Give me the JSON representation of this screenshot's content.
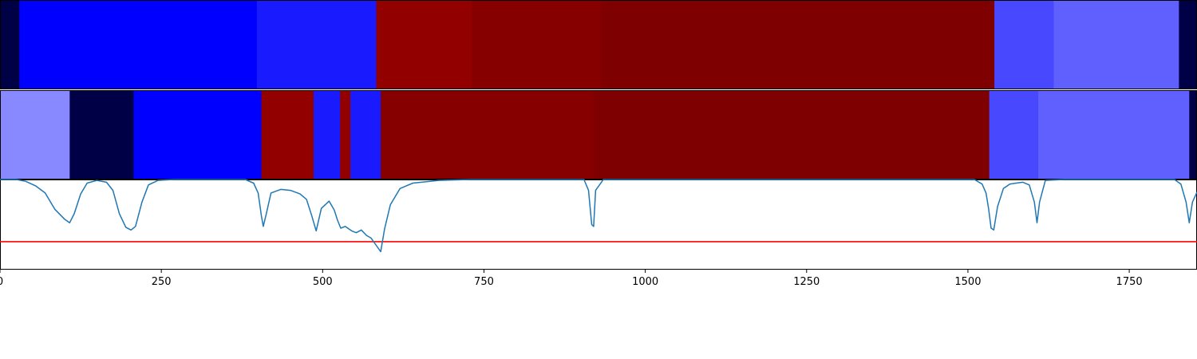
{
  "chart_data": [
    {
      "type": "heatmap",
      "colors": {
        "blue_dark": "#000046",
        "blue": "#0000ff",
        "blue_mid": "#1a1aff",
        "blue_light": "#4848ff",
        "blue_lighter": "#6060ff",
        "blue_pale": "#8888ff",
        "red": "#920000",
        "red_mid": "#870000",
        "red_dark": "#7e0000"
      },
      "segments": [
        {
          "x0": 0,
          "x1": 30,
          "color": "#000046"
        },
        {
          "x0": 30,
          "x1": 398,
          "color": "#0000ff"
        },
        {
          "x0": 398,
          "x1": 583,
          "color": "#1a1aff"
        },
        {
          "x0": 583,
          "x1": 731,
          "color": "#920000"
        },
        {
          "x0": 731,
          "x1": 931,
          "color": "#870000"
        },
        {
          "x0": 931,
          "x1": 1541,
          "color": "#7e0000"
        },
        {
          "x0": 1541,
          "x1": 1633,
          "color": "#4848ff"
        },
        {
          "x0": 1633,
          "x1": 1827,
          "color": "#6060ff"
        },
        {
          "x0": 1827,
          "x1": 1855,
          "color": "#000046"
        }
      ]
    },
    {
      "type": "heatmap",
      "segments": [
        {
          "x0": 0,
          "x1": 108,
          "color": "#8888ff"
        },
        {
          "x0": 108,
          "x1": 207,
          "color": "#000046"
        },
        {
          "x0": 207,
          "x1": 405,
          "color": "#0000ff"
        },
        {
          "x0": 405,
          "x1": 486,
          "color": "#920000"
        },
        {
          "x0": 486,
          "x1": 527,
          "color": "#1a1aff"
        },
        {
          "x0": 527,
          "x1": 543,
          "color": "#920000"
        },
        {
          "x0": 543,
          "x1": 590,
          "color": "#1a1aff"
        },
        {
          "x0": 590,
          "x1": 921,
          "color": "#870000"
        },
        {
          "x0": 921,
          "x1": 1533,
          "color": "#7e0000"
        },
        {
          "x0": 1533,
          "x1": 1609,
          "color": "#4848ff"
        },
        {
          "x0": 1609,
          "x1": 1843,
          "color": "#6060ff"
        },
        {
          "x0": 1843,
          "x1": 1855,
          "color": "#000046"
        }
      ]
    },
    {
      "type": "line",
      "xlim": [
        0,
        1855
      ],
      "ylim": [
        0,
        1
      ],
      "x_ticks": [
        0,
        250,
        500,
        750,
        1000,
        1250,
        1500,
        1750
      ],
      "x_tick_labels": [
        "0",
        "250",
        "500",
        "750",
        "1000",
        "1250",
        "1500",
        "1750"
      ],
      "threshold": {
        "value": 0.31,
        "color": "#ff0000"
      },
      "series_color": "#1f77b4",
      "points": [
        [
          0,
          1.0
        ],
        [
          25,
          1.0
        ],
        [
          40,
          0.98
        ],
        [
          55,
          0.93
        ],
        [
          70,
          0.85
        ],
        [
          85,
          0.67
        ],
        [
          100,
          0.56
        ],
        [
          108,
          0.52
        ],
        [
          115,
          0.62
        ],
        [
          125,
          0.84
        ],
        [
          135,
          0.96
        ],
        [
          150,
          0.99
        ],
        [
          165,
          0.97
        ],
        [
          175,
          0.88
        ],
        [
          185,
          0.62
        ],
        [
          195,
          0.47
        ],
        [
          203,
          0.44
        ],
        [
          210,
          0.48
        ],
        [
          220,
          0.75
        ],
        [
          230,
          0.94
        ],
        [
          245,
          0.99
        ],
        [
          270,
          1.0
        ],
        [
          380,
          1.0
        ],
        [
          393,
          0.96
        ],
        [
          400,
          0.85
        ],
        [
          405,
          0.6
        ],
        [
          408,
          0.48
        ],
        [
          412,
          0.6
        ],
        [
          420,
          0.85
        ],
        [
          435,
          0.89
        ],
        [
          450,
          0.88
        ],
        [
          465,
          0.84
        ],
        [
          475,
          0.78
        ],
        [
          483,
          0.6
        ],
        [
          490,
          0.43
        ],
        [
          498,
          0.68
        ],
        [
          510,
          0.76
        ],
        [
          518,
          0.66
        ],
        [
          523,
          0.55
        ],
        [
          528,
          0.46
        ],
        [
          535,
          0.48
        ],
        [
          545,
          0.43
        ],
        [
          552,
          0.41
        ],
        [
          560,
          0.44
        ],
        [
          568,
          0.38
        ],
        [
          575,
          0.35
        ],
        [
          583,
          0.27
        ],
        [
          590,
          0.2
        ],
        [
          596,
          0.45
        ],
        [
          605,
          0.72
        ],
        [
          620,
          0.9
        ],
        [
          640,
          0.96
        ],
        [
          680,
          0.99
        ],
        [
          730,
          1.0
        ],
        [
          905,
          1.0
        ],
        [
          912,
          0.88
        ],
        [
          917,
          0.5
        ],
        [
          920,
          0.48
        ],
        [
          923,
          0.88
        ],
        [
          935,
          1.0
        ],
        [
          1510,
          1.0
        ],
        [
          1522,
          0.95
        ],
        [
          1528,
          0.85
        ],
        [
          1532,
          0.68
        ],
        [
          1536,
          0.46
        ],
        [
          1540,
          0.44
        ],
        [
          1546,
          0.7
        ],
        [
          1555,
          0.9
        ],
        [
          1565,
          0.95
        ],
        [
          1575,
          0.96
        ],
        [
          1585,
          0.97
        ],
        [
          1595,
          0.94
        ],
        [
          1603,
          0.75
        ],
        [
          1607,
          0.52
        ],
        [
          1611,
          0.75
        ],
        [
          1620,
          0.99
        ],
        [
          1650,
          1.0
        ],
        [
          1820,
          1.0
        ],
        [
          1830,
          0.95
        ],
        [
          1838,
          0.75
        ],
        [
          1843,
          0.52
        ],
        [
          1848,
          0.75
        ],
        [
          1855,
          0.86
        ]
      ]
    }
  ]
}
